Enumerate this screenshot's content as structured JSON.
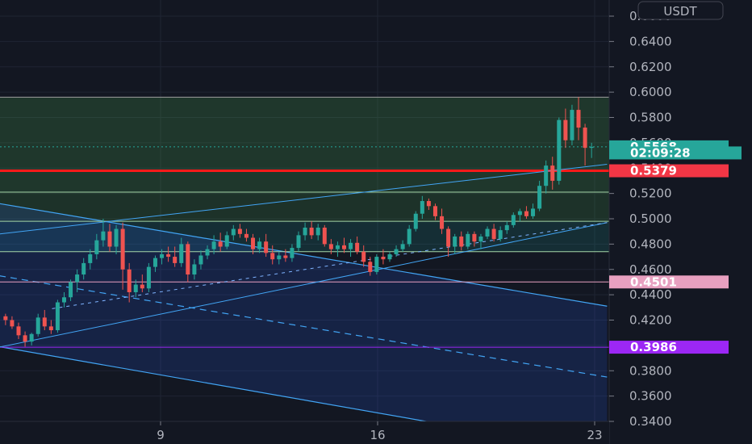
{
  "currency_label": "USDT",
  "chart_data": {
    "type": "candlestick",
    "y_ticks": [
      "0.6600",
      "0.6400",
      "0.6200",
      "0.6000",
      "0.5800",
      "0.5600",
      "0.5400",
      "0.5200",
      "0.5000",
      "0.4800",
      "0.4600",
      "0.4400",
      "0.4200",
      "0.4000",
      "0.3800",
      "0.3600",
      "0.3400"
    ],
    "x_ticks": [
      {
        "label": "9",
        "day": 9
      },
      {
        "label": "16",
        "day": 16
      },
      {
        "label": "23",
        "day": 23
      }
    ],
    "ylim": [
      0.335,
      0.665
    ],
    "xlim_days": [
      3.8,
      23.4
    ],
    "price_badges": [
      {
        "label": "0.5568",
        "value": 0.5568,
        "color": "#26a69a"
      },
      {
        "label": "02:09:28",
        "value": 0.552,
        "color": "#26a69a"
      },
      {
        "label": "0.5379",
        "value": 0.5379,
        "color": "#f23645"
      },
      {
        "label": "0.4501",
        "value": 0.4501,
        "color": "#e8a0c0"
      },
      {
        "label": "0.3986",
        "value": 0.3986,
        "color": "#9c27f5"
      }
    ],
    "horizontal_levels": [
      {
        "value": 0.596,
        "color": "#9e9e9e",
        "style": "solid"
      },
      {
        "value": 0.5568,
        "color": "#26a69a",
        "style": "dotted"
      },
      {
        "value": 0.5379,
        "color": "#ff1a1a",
        "style": "solid"
      },
      {
        "value": 0.521,
        "color": "#a5d6a7",
        "style": "solid"
      },
      {
        "value": 0.498,
        "color": "#a5d6a7",
        "style": "solid"
      },
      {
        "value": 0.474,
        "color": "#a5d6a7",
        "style": "solid"
      },
      {
        "value": 0.4501,
        "color": "#e8a0c0",
        "style": "solid"
      },
      {
        "value": 0.3986,
        "color": "#9c27f5",
        "style": "solid"
      }
    ],
    "zones": [
      {
        "top": 0.596,
        "bottom": 0.521,
        "color": "#4caf50",
        "opacity": 0.22
      },
      {
        "top": 0.521,
        "bottom": 0.498,
        "color": "#4caf50",
        "opacity": 0.18
      },
      {
        "top": 0.498,
        "bottom": 0.474,
        "color": "#26a69a",
        "opacity": 0.16
      }
    ],
    "trend_lines": [
      {
        "x1": 3.8,
        "y1": 0.488,
        "x2": 23.4,
        "y2": 0.543,
        "color": "#42a5f5",
        "style": "solid"
      },
      {
        "x1": 3.8,
        "y1": 0.3986,
        "x2": 23.4,
        "y2": 0.497,
        "color": "#42a5f5",
        "style": "solid"
      },
      {
        "x1": 5.5,
        "y1": 0.429,
        "x2": 23.4,
        "y2": 0.497,
        "color": "#7fb3ff",
        "style": "dashed"
      }
    ],
    "channel": {
      "upper": {
        "x1": 3.8,
        "y1": 0.512,
        "x2": 23.4,
        "y2": 0.431
      },
      "mid": {
        "x1": 3.8,
        "y1": 0.455,
        "x2": 23.4,
        "y2": 0.375
      },
      "lower": {
        "x1": 3.8,
        "y1": 0.399,
        "x2": 23.4,
        "y2": 0.315
      },
      "color": "#42a5f5"
    },
    "candles": [
      [
        0.423,
        0.425,
        0.416,
        0.42
      ],
      [
        0.42,
        0.423,
        0.413,
        0.415
      ],
      [
        0.415,
        0.418,
        0.405,
        0.408
      ],
      [
        0.408,
        0.411,
        0.399,
        0.403
      ],
      [
        0.403,
        0.41,
        0.4,
        0.409
      ],
      [
        0.409,
        0.425,
        0.407,
        0.422
      ],
      [
        0.422,
        0.428,
        0.412,
        0.415
      ],
      [
        0.415,
        0.42,
        0.409,
        0.412
      ],
      [
        0.412,
        0.436,
        0.41,
        0.434
      ],
      [
        0.434,
        0.442,
        0.43,
        0.438
      ],
      [
        0.438,
        0.452,
        0.435,
        0.45
      ],
      [
        0.45,
        0.46,
        0.442,
        0.456
      ],
      [
        0.456,
        0.469,
        0.452,
        0.465
      ],
      [
        0.465,
        0.476,
        0.46,
        0.472
      ],
      [
        0.472,
        0.488,
        0.468,
        0.483
      ],
      [
        0.483,
        0.5,
        0.478,
        0.49
      ],
      [
        0.49,
        0.496,
        0.474,
        0.478
      ],
      [
        0.478,
        0.495,
        0.472,
        0.492
      ],
      [
        0.492,
        0.497,
        0.444,
        0.46
      ],
      [
        0.46,
        0.465,
        0.434,
        0.442
      ],
      [
        0.442,
        0.452,
        0.438,
        0.448
      ],
      [
        0.448,
        0.456,
        0.442,
        0.445
      ],
      [
        0.445,
        0.465,
        0.442,
        0.462
      ],
      [
        0.462,
        0.471,
        0.458,
        0.469
      ],
      [
        0.469,
        0.476,
        0.464,
        0.472
      ],
      [
        0.472,
        0.478,
        0.466,
        0.47
      ],
      [
        0.47,
        0.478,
        0.462,
        0.465
      ],
      [
        0.465,
        0.485,
        0.462,
        0.48
      ],
      [
        0.48,
        0.482,
        0.45,
        0.456
      ],
      [
        0.456,
        0.468,
        0.452,
        0.464
      ],
      [
        0.464,
        0.475,
        0.46,
        0.471
      ],
      [
        0.471,
        0.479,
        0.468,
        0.476
      ],
      [
        0.476,
        0.487,
        0.472,
        0.482
      ],
      [
        0.482,
        0.489,
        0.474,
        0.478
      ],
      [
        0.478,
        0.49,
        0.476,
        0.487
      ],
      [
        0.487,
        0.495,
        0.483,
        0.492
      ],
      [
        0.492,
        0.496,
        0.485,
        0.488
      ],
      [
        0.488,
        0.492,
        0.482,
        0.485
      ],
      [
        0.485,
        0.488,
        0.472,
        0.476
      ],
      [
        0.476,
        0.485,
        0.473,
        0.482
      ],
      [
        0.482,
        0.488,
        0.47,
        0.473
      ],
      [
        0.473,
        0.479,
        0.464,
        0.468
      ],
      [
        0.468,
        0.474,
        0.464,
        0.471
      ],
      [
        0.471,
        0.476,
        0.466,
        0.469
      ],
      [
        0.469,
        0.48,
        0.466,
        0.477
      ],
      [
        0.477,
        0.49,
        0.474,
        0.487
      ],
      [
        0.487,
        0.497,
        0.483,
        0.493
      ],
      [
        0.493,
        0.498,
        0.484,
        0.487
      ],
      [
        0.487,
        0.496,
        0.483,
        0.493
      ],
      [
        0.493,
        0.495,
        0.478,
        0.48
      ],
      [
        0.48,
        0.484,
        0.472,
        0.476
      ],
      [
        0.476,
        0.482,
        0.47,
        0.479
      ],
      [
        0.479,
        0.485,
        0.473,
        0.476
      ],
      [
        0.476,
        0.484,
        0.47,
        0.481
      ],
      [
        0.481,
        0.486,
        0.472,
        0.474
      ],
      [
        0.474,
        0.479,
        0.462,
        0.466
      ],
      [
        0.466,
        0.47,
        0.455,
        0.458
      ],
      [
        0.458,
        0.472,
        0.456,
        0.47
      ],
      [
        0.47,
        0.476,
        0.464,
        0.468
      ],
      [
        0.468,
        0.474,
        0.466,
        0.472
      ],
      [
        0.472,
        0.479,
        0.47,
        0.476
      ],
      [
        0.476,
        0.483,
        0.474,
        0.48
      ],
      [
        0.48,
        0.495,
        0.478,
        0.492
      ],
      [
        0.492,
        0.506,
        0.49,
        0.504
      ],
      [
        0.504,
        0.518,
        0.5,
        0.514
      ],
      [
        0.514,
        0.516,
        0.507,
        0.51
      ],
      [
        0.51,
        0.512,
        0.499,
        0.502
      ],
      [
        0.502,
        0.508,
        0.488,
        0.492
      ],
      [
        0.492,
        0.494,
        0.47,
        0.478
      ],
      [
        0.478,
        0.488,
        0.472,
        0.486
      ],
      [
        0.486,
        0.49,
        0.475,
        0.478
      ],
      [
        0.478,
        0.49,
        0.476,
        0.488
      ],
      [
        0.488,
        0.49,
        0.478,
        0.482
      ],
      [
        0.482,
        0.488,
        0.476,
        0.486
      ],
      [
        0.486,
        0.494,
        0.484,
        0.492
      ],
      [
        0.492,
        0.496,
        0.482,
        0.484
      ],
      [
        0.484,
        0.494,
        0.482,
        0.491
      ],
      [
        0.491,
        0.498,
        0.488,
        0.495
      ],
      [
        0.495,
        0.505,
        0.493,
        0.503
      ],
      [
        0.503,
        0.508,
        0.498,
        0.506
      ],
      [
        0.506,
        0.51,
        0.5,
        0.502
      ],
      [
        0.502,
        0.512,
        0.5,
        0.508
      ],
      [
        0.508,
        0.53,
        0.506,
        0.526
      ],
      [
        0.526,
        0.546,
        0.52,
        0.542
      ],
      [
        0.542,
        0.549,
        0.523,
        0.53
      ],
      [
        0.53,
        0.58,
        0.527,
        0.578
      ],
      [
        0.578,
        0.587,
        0.556,
        0.562
      ],
      [
        0.562,
        0.59,
        0.558,
        0.586
      ],
      [
        0.586,
        0.596,
        0.562,
        0.572
      ],
      [
        0.572,
        0.575,
        0.542,
        0.556
      ],
      [
        0.556,
        0.56,
        0.548,
        0.5568
      ]
    ],
    "candle_start_day": 4.0,
    "candle_step_day": 0.21
  }
}
